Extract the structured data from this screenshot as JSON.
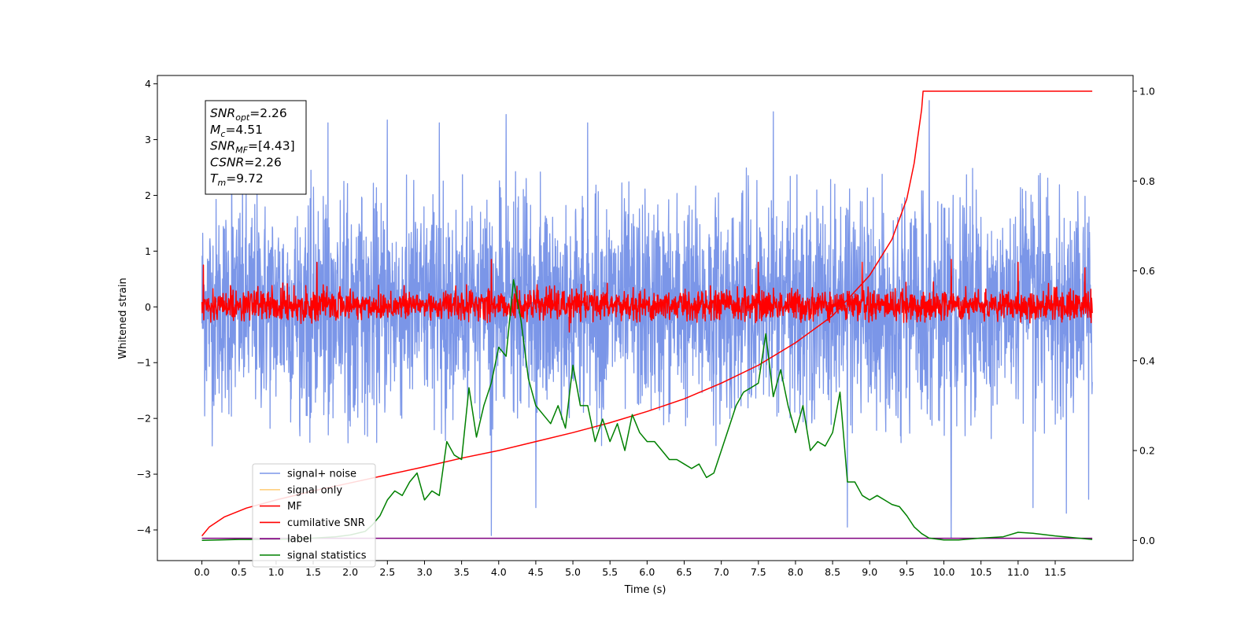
{
  "chart_data": {
    "type": "line",
    "xlabel": "Time (s)",
    "ylabel": "Whitened strain",
    "xlim": [
      -0.6,
      12.55
    ],
    "ylim_left": [
      -4.55,
      4.15
    ],
    "ylim_right": [
      -0.045,
      1.035
    ],
    "x_ticks": [
      "0.0",
      "0.5",
      "1.0",
      "1.5",
      "2.0",
      "2.5",
      "3.0",
      "3.5",
      "4.0",
      "4.5",
      "5.0",
      "5.5",
      "6.0",
      "6.5",
      "7.0",
      "7.5",
      "8.0",
      "8.5",
      "9.0",
      "9.5",
      "10.0",
      "10.5",
      "11.0",
      "11.5"
    ],
    "y_ticks_left": [
      "−4",
      "−3",
      "−2",
      "−1",
      "0",
      "1",
      "2",
      "3",
      "4"
    ],
    "y_ticks_right": [
      "0.0",
      "0.2",
      "0.4",
      "0.6",
      "0.8",
      "1.0"
    ],
    "grid": false,
    "legend": {
      "placement": "lower-left",
      "entries": [
        {
          "label": "signal+ noise",
          "color": "#7b96e8"
        },
        {
          "label": "signal only",
          "color": "#ffd080"
        },
        {
          "label": "MF",
          "color": "#ff0000"
        },
        {
          "label": "cumilative SNR",
          "color": "#ff0000"
        },
        {
          "label": "label",
          "color": "#800080"
        },
        {
          "label": "signal statistics",
          "color": "#008000"
        }
      ]
    },
    "annotation": {
      "placement": "top-left",
      "lines": [
        {
          "main": "SNR",
          "sub": "opt",
          "value": "=2.26"
        },
        {
          "main": "M",
          "sub": "c",
          "value": "=4.51"
        },
        {
          "main": "SNR",
          "sub": "MF",
          "value": "=[4.43]"
        },
        {
          "main": "CSNR",
          "sub": "",
          "value": "=2.26"
        },
        {
          "main": "T",
          "sub": "m",
          "value": "=9.72"
        }
      ]
    },
    "series": [
      {
        "name": "signal+ noise",
        "axis": "left",
        "color": "#7b96e8",
        "x_range": [
          0.0,
          12.0
        ],
        "amplitude_range": [
          -2.5,
          2.5
        ],
        "spikes": [
          [
            0.4,
            2.7
          ],
          [
            1.7,
            3.3
          ],
          [
            2.5,
            3.35
          ],
          [
            3.2,
            3.3
          ],
          [
            3.9,
            -4.1
          ],
          [
            4.1,
            3.45
          ],
          [
            4.5,
            -3.6
          ],
          [
            5.2,
            3.3
          ],
          [
            7.7,
            3.5
          ],
          [
            8.7,
            -3.95
          ],
          [
            9.8,
            3.7
          ],
          [
            10.1,
            -4.15
          ],
          [
            11.2,
            -3.6
          ],
          [
            11.65,
            3.7
          ],
          [
            11.65,
            -3.7
          ],
          [
            11.95,
            -3.45
          ]
        ]
      },
      {
        "name": "MF",
        "axis": "left",
        "color": "#ff0000",
        "x_range": [
          0.0,
          12.0
        ],
        "amplitude_range": [
          -0.3,
          0.45
        ],
        "spikes": [
          [
            0.02,
            0.75
          ],
          [
            1.55,
            0.8
          ],
          [
            3.9,
            0.85
          ],
          [
            4.95,
            -0.45
          ],
          [
            7.5,
            0.8
          ],
          [
            8.9,
            0.8
          ],
          [
            10.1,
            0.85
          ],
          [
            11.0,
            0.8
          ],
          [
            11.9,
            0.7
          ]
        ]
      },
      {
        "name": "cumilative SNR",
        "axis": "right",
        "color": "#ff0000",
        "x": [
          0.0,
          0.1,
          0.3,
          0.6,
          1.0,
          1.5,
          2.0,
          2.5,
          3.0,
          3.5,
          4.0,
          4.5,
          5.0,
          5.5,
          6.0,
          6.5,
          7.0,
          7.5,
          8.0,
          8.5,
          9.0,
          9.3,
          9.5,
          9.6,
          9.7,
          9.72,
          12.0
        ],
        "y": [
          0.01,
          0.03,
          0.052,
          0.072,
          0.09,
          0.11,
          0.128,
          0.146,
          0.164,
          0.183,
          0.2,
          0.22,
          0.24,
          0.262,
          0.287,
          0.315,
          0.35,
          0.39,
          0.44,
          0.5,
          0.59,
          0.67,
          0.76,
          0.84,
          0.96,
          1.0,
          1.0
        ]
      },
      {
        "name": "label",
        "axis": "left",
        "color": "#800080",
        "x": [
          0.0,
          12.0
        ],
        "y": [
          -4.15,
          -4.15
        ]
      },
      {
        "name": "signal statistics",
        "axis": "right",
        "color": "#008000",
        "x": [
          0.0,
          0.5,
          1.0,
          1.5,
          1.8,
          2.0,
          2.2,
          2.3,
          2.4,
          2.5,
          2.6,
          2.7,
          2.8,
          2.9,
          3.0,
          3.1,
          3.2,
          3.3,
          3.4,
          3.5,
          3.6,
          3.7,
          3.8,
          3.9,
          4.0,
          4.1,
          4.2,
          4.3,
          4.4,
          4.5,
          4.6,
          4.7,
          4.8,
          4.9,
          5.0,
          5.1,
          5.2,
          5.3,
          5.4,
          5.5,
          5.6,
          5.7,
          5.8,
          5.9,
          6.0,
          6.1,
          6.2,
          6.3,
          6.4,
          6.5,
          6.6,
          6.7,
          6.8,
          6.9,
          7.0,
          7.1,
          7.2,
          7.3,
          7.4,
          7.5,
          7.6,
          7.7,
          7.8,
          7.9,
          8.0,
          8.1,
          8.2,
          8.3,
          8.4,
          8.5,
          8.6,
          8.7,
          8.8,
          8.9,
          9.0,
          9.1,
          9.2,
          9.3,
          9.4,
          9.5,
          9.6,
          9.7,
          9.8,
          10.0,
          10.2,
          10.5,
          10.8,
          11.0,
          11.2,
          11.5,
          12.0
        ],
        "y": [
          0.0,
          0.002,
          0.002,
          0.005,
          0.008,
          0.012,
          0.02,
          0.035,
          0.055,
          0.09,
          0.11,
          0.1,
          0.13,
          0.15,
          0.09,
          0.11,
          0.1,
          0.22,
          0.19,
          0.18,
          0.34,
          0.23,
          0.3,
          0.35,
          0.43,
          0.41,
          0.58,
          0.49,
          0.36,
          0.3,
          0.28,
          0.26,
          0.3,
          0.25,
          0.39,
          0.3,
          0.3,
          0.22,
          0.27,
          0.22,
          0.26,
          0.2,
          0.28,
          0.24,
          0.22,
          0.22,
          0.2,
          0.18,
          0.18,
          0.17,
          0.16,
          0.17,
          0.14,
          0.15,
          0.2,
          0.25,
          0.3,
          0.33,
          0.34,
          0.35,
          0.46,
          0.32,
          0.38,
          0.3,
          0.24,
          0.3,
          0.2,
          0.22,
          0.21,
          0.24,
          0.33,
          0.13,
          0.13,
          0.1,
          0.09,
          0.1,
          0.09,
          0.08,
          0.075,
          0.055,
          0.03,
          0.015,
          0.005,
          0.001,
          0.001,
          0.005,
          0.008,
          0.018,
          0.016,
          0.01,
          0.002
        ]
      }
    ]
  }
}
